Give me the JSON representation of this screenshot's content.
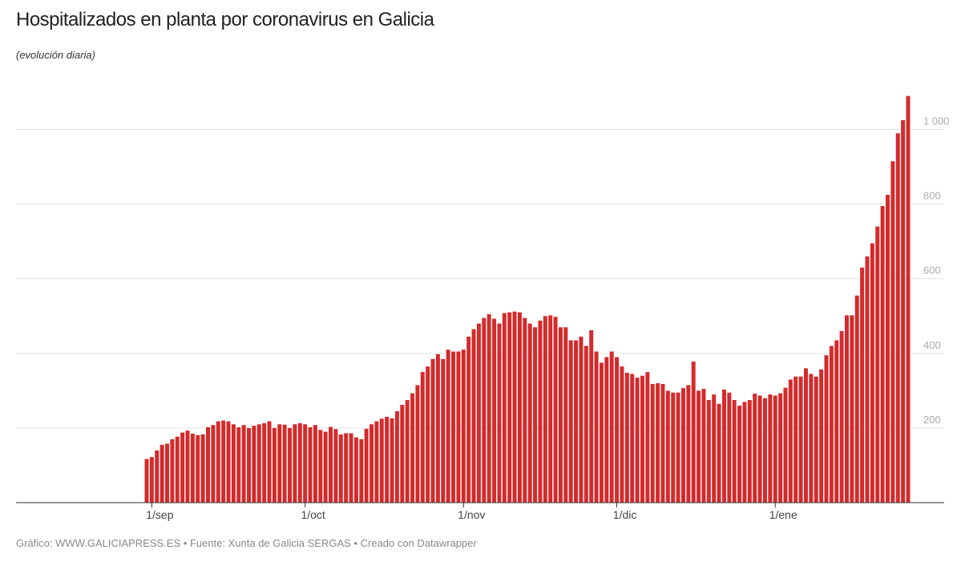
{
  "chart_data": {
    "type": "bar",
    "title": "Hospitalizados en planta por coronavirus en Galicia",
    "subtitle": "(evolución diaria)",
    "source": "Gráfico: WWW.GALICIAPRESS.ES • Fuente: Xunta de Galicia SERGAS • Creado con Datawrapper",
    "color": "#d42a2b",
    "grid": true,
    "ylim": [
      0,
      1100
    ],
    "yticks": [
      200,
      400,
      600,
      800,
      {
        "value": 1000,
        "label": "1 000"
      }
    ],
    "categories": [
      null,
      "1/sep",
      null,
      null,
      null,
      null,
      null,
      null,
      null,
      null,
      null,
      null,
      null,
      null,
      null,
      null,
      null,
      null,
      null,
      null,
      null,
      null,
      null,
      null,
      null,
      null,
      null,
      null,
      null,
      null,
      null,
      "1/oct",
      null,
      null,
      null,
      null,
      null,
      null,
      null,
      null,
      null,
      null,
      null,
      null,
      null,
      null,
      null,
      null,
      null,
      null,
      null,
      null,
      null,
      null,
      null,
      null,
      null,
      null,
      null,
      null,
      null,
      null,
      "1/nov",
      null,
      null,
      null,
      null,
      null,
      null,
      null,
      null,
      null,
      null,
      null,
      null,
      null,
      null,
      null,
      null,
      null,
      null,
      null,
      null,
      null,
      null,
      null,
      null,
      null,
      null,
      null,
      null,
      null,
      "1/dic",
      null,
      null,
      null,
      null,
      null,
      null,
      null,
      null,
      null,
      null,
      null,
      null,
      null,
      null,
      null,
      null,
      null,
      null,
      null,
      null,
      null,
      null,
      null,
      null,
      null,
      null,
      null,
      null,
      null,
      null,
      "1/ene",
      null,
      null,
      null,
      null,
      null,
      null,
      null,
      null,
      null,
      null,
      null,
      null,
      null,
      null,
      null,
      null,
      null,
      null,
      null,
      null,
      null,
      null,
      null,
      null,
      null,
      null
    ],
    "values": [
      117,
      122,
      140,
      155,
      158,
      170,
      177,
      188,
      193,
      185,
      181,
      183,
      202,
      208,
      218,
      220,
      218,
      210,
      202,
      208,
      200,
      206,
      210,
      213,
      218,
      200,
      210,
      209,
      200,
      210,
      213,
      210,
      202,
      208,
      195,
      190,
      203,
      197,
      183,
      186,
      186,
      175,
      170,
      198,
      210,
      218,
      225,
      230,
      226,
      245,
      262,
      275,
      293,
      315,
      350,
      365,
      385,
      398,
      385,
      410,
      405,
      405,
      410,
      445,
      465,
      480,
      495,
      505,
      493,
      480,
      508,
      510,
      512,
      510,
      495,
      480,
      470,
      488,
      500,
      502,
      498,
      470,
      470,
      435,
      435,
      445,
      420,
      462,
      405,
      375,
      390,
      405,
      390,
      365,
      348,
      345,
      335,
      340,
      350,
      318,
      320,
      318,
      300,
      295,
      295,
      307,
      315,
      378,
      300,
      305,
      275,
      290,
      265,
      303,
      295,
      275,
      260,
      270,
      275,
      292,
      287,
      280,
      290,
      287,
      293,
      308,
      330,
      338,
      338,
      360,
      345,
      338,
      357,
      395,
      420,
      435,
      460,
      502,
      502,
      555,
      630,
      660,
      695,
      740,
      795,
      825,
      915,
      990,
      1025,
      1090
    ]
  }
}
